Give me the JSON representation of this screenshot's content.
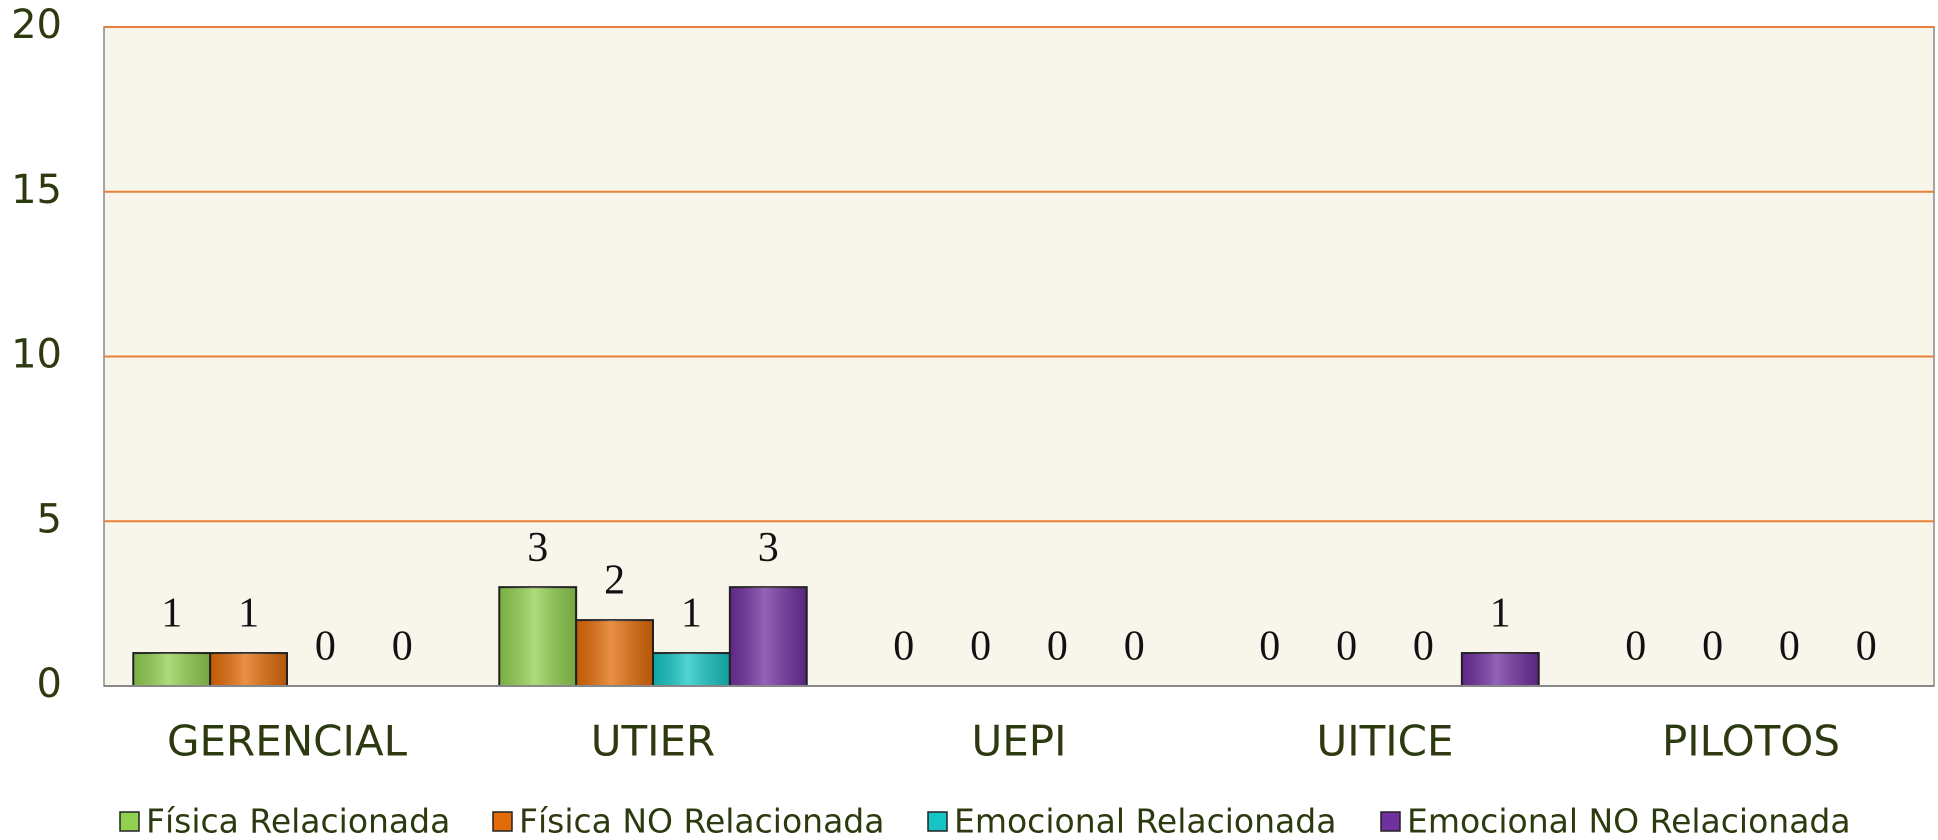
{
  "chart_data": {
    "type": "bar",
    "categories": [
      "GERENCIAL",
      "UTIER",
      "UEPI",
      "UITICE",
      "PILOTOS"
    ],
    "series": [
      {
        "name": "Física Relacionada",
        "color": "#92d050",
        "values": [
          1,
          3,
          0,
          0,
          0
        ]
      },
      {
        "name": "Física NO Relacionada",
        "color": "#e36c09",
        "values": [
          1,
          2,
          0,
          0,
          0
        ]
      },
      {
        "name": "Emocional Relacionada",
        "color": "#17c4c4",
        "values": [
          0,
          1,
          0,
          0,
          0
        ]
      },
      {
        "name": "Emocional NO Relacionada",
        "color": "#7030a0",
        "values": [
          0,
          3,
          0,
          1,
          0
        ]
      }
    ],
    "ylim": [
      0,
      20
    ],
    "yticks": [
      0,
      5,
      10,
      15,
      20
    ],
    "grid": true,
    "legend": "bottom"
  }
}
